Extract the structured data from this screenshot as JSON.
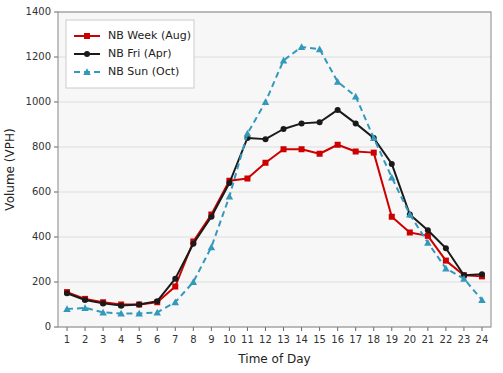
{
  "chart_data": {
    "type": "line",
    "xlabel": "Time of Day",
    "ylabel": "Volume (VPH)",
    "x": [
      1,
      2,
      3,
      4,
      5,
      6,
      7,
      8,
      9,
      10,
      11,
      12,
      13,
      14,
      15,
      16,
      17,
      18,
      19,
      20,
      21,
      22,
      23,
      24
    ],
    "series": [
      {
        "name": "NB Week (Aug)",
        "color": "#cc0000",
        "marker": "square",
        "line_style": "solid",
        "values": [
          155,
          125,
          110,
          100,
          100,
          110,
          180,
          380,
          500,
          650,
          660,
          730,
          790,
          790,
          770,
          810,
          780,
          775,
          490,
          420,
          405,
          295,
          230,
          225
        ]
      },
      {
        "name": "NB Fri (Apr)",
        "color": "#1a1a1a",
        "marker": "circle",
        "line_style": "solid",
        "values": [
          150,
          120,
          105,
          95,
          100,
          115,
          215,
          370,
          490,
          640,
          840,
          835,
          880,
          905,
          910,
          965,
          905,
          840,
          725,
          500,
          430,
          350,
          230,
          235
        ]
      },
      {
        "name": "NB Sun (Oct)",
        "color": "#3399bb",
        "marker": "triangle",
        "line_style": "dashed",
        "values": [
          80,
          85,
          65,
          60,
          60,
          65,
          110,
          200,
          355,
          580,
          860,
          1000,
          1185,
          1245,
          1235,
          1090,
          1025,
          840,
          665,
          500,
          375,
          260,
          215,
          120
        ]
      }
    ],
    "xlim": [
      0.5,
      24.5
    ],
    "ylim": [
      0,
      1400
    ],
    "xticks": [
      1,
      2,
      3,
      4,
      5,
      6,
      7,
      8,
      9,
      10,
      11,
      12,
      13,
      14,
      15,
      16,
      17,
      18,
      19,
      20,
      21,
      22,
      23,
      24
    ],
    "yticks": [
      0,
      200,
      400,
      600,
      800,
      1000,
      1200,
      1400
    ],
    "grid": true,
    "legend": "upper left"
  }
}
